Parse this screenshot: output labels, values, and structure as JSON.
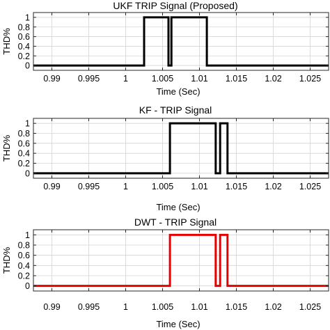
{
  "chart_data": [
    {
      "type": "line",
      "title": "UKF TRIP Signal (Proposed)",
      "xlabel": "Time (Sec)",
      "ylabel": "THD%",
      "xlim": [
        0.9875,
        1.0275
      ],
      "ylim": [
        -0.1,
        1.1
      ],
      "xticks": [
        0.99,
        0.995,
        1,
        1.005,
        1.01,
        1.015,
        1.02,
        1.025
      ],
      "xtick_labels": [
        "0.99",
        "0.995",
        "1",
        "1.005",
        "1.01",
        "1.015",
        "1.02",
        "1.025"
      ],
      "yticks": [
        0,
        0.2,
        0.4,
        0.6,
        0.8,
        1
      ],
      "ytick_labels": [
        "0",
        "0.2",
        "0.4",
        "0.6",
        "0.8",
        "1"
      ],
      "grid": true,
      "series": [
        {
          "color": "#000000",
          "x": [
            0.9875,
            1.0025,
            1.0025,
            1.0058,
            1.0058,
            1.0062,
            1.0062,
            1.011,
            1.011,
            1.0275
          ],
          "y": [
            0,
            0,
            1,
            1,
            0,
            0,
            1,
            1,
            0,
            0
          ]
        }
      ]
    },
    {
      "type": "line",
      "title": "KF - TRIP Signal",
      "xlabel": "Time (Sec)",
      "ylabel": "THD%",
      "xlim": [
        0.9875,
        1.0275
      ],
      "ylim": [
        -0.1,
        1.1
      ],
      "xticks": [
        0.99,
        0.995,
        1,
        1.005,
        1.01,
        1.015,
        1.02,
        1.025
      ],
      "xtick_labels": [
        "0.99",
        "0.995",
        "1",
        "1.005",
        "1.01",
        "1.015",
        "1.02",
        "1.025"
      ],
      "yticks": [
        0,
        0.2,
        0.4,
        0.6,
        0.8,
        1
      ],
      "ytick_labels": [
        "0",
        "0.2",
        "0.4",
        "0.6",
        "0.8",
        "1"
      ],
      "grid": true,
      "series": [
        {
          "color": "#000000",
          "x": [
            0.9875,
            1.006,
            1.006,
            1.0122,
            1.0122,
            1.0128,
            1.0128,
            1.0138,
            1.0138,
            1.0275
          ],
          "y": [
            0,
            0,
            1,
            1,
            0,
            0,
            1,
            1,
            0,
            0
          ]
        }
      ]
    },
    {
      "type": "line",
      "title": "DWT - TRIP Signal",
      "xlabel": "Time (Sec)",
      "ylabel": "THD%",
      "xlim": [
        0.9875,
        1.0275
      ],
      "ylim": [
        -0.1,
        1.1
      ],
      "xticks": [
        0.99,
        0.995,
        1,
        1.005,
        1.01,
        1.015,
        1.02,
        1.025
      ],
      "xtick_labels": [
        "0.99",
        "0.995",
        "1",
        "1.005",
        "1.01",
        "1.015",
        "1.02",
        "1.025"
      ],
      "yticks": [
        0,
        0.2,
        0.4,
        0.6,
        0.8,
        1
      ],
      "ytick_labels": [
        "0",
        "0.2",
        "0.4",
        "0.6",
        "0.8",
        "1"
      ],
      "grid": true,
      "series": [
        {
          "color": "#e60000",
          "x": [
            0.9875,
            1.006,
            1.006,
            1.0122,
            1.0122,
            1.0128,
            1.0128,
            1.0138,
            1.0138,
            1.0275
          ],
          "y": [
            0,
            0,
            1,
            1,
            0,
            0,
            1,
            1,
            0,
            0
          ]
        }
      ]
    }
  ]
}
